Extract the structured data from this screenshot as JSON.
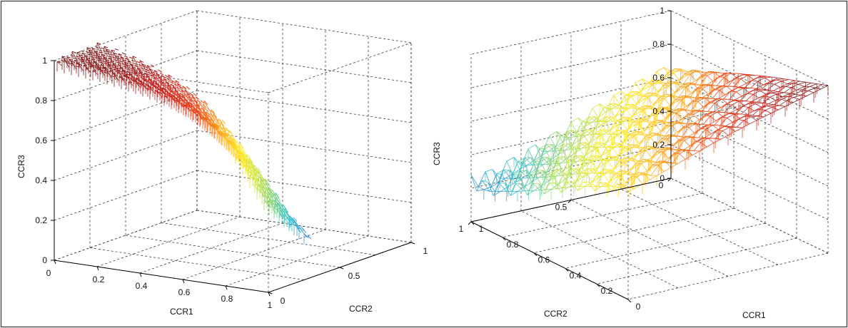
{
  "colors": {
    "background": "#ffffff",
    "frame": "#333333",
    "axes": "#000000",
    "grid": "#222222",
    "colormap": [
      "#1c1c8a",
      "#2b40c8",
      "#2f8fd8",
      "#33c4cc",
      "#8ed67a",
      "#cfe64a",
      "#ffe81e",
      "#ffb020",
      "#f04a18",
      "#c41e1e",
      "#7a1a1a"
    ]
  },
  "chart_data": [
    {
      "type": "surface",
      "panel": "left",
      "xlabel": "CCR1",
      "ylabel": "CCR2",
      "zlabel": "CCR3",
      "xlim": [
        0,
        1
      ],
      "ylim": [
        0,
        1
      ],
      "zlim": [
        0,
        1
      ],
      "xticks": [
        "0",
        "0.2",
        "0.4",
        "0.6",
        "0.8",
        "1"
      ],
      "yticks": [
        "0",
        "0.5",
        "1"
      ],
      "zticks": [
        "0",
        "0.2",
        "0.4",
        "0.6",
        "0.8",
        "1"
      ],
      "grid": true,
      "colormap": "jet",
      "surface_profile": {
        "x": [
          0.0,
          0.1,
          0.2,
          0.3,
          0.4,
          0.5,
          0.6,
          0.7,
          0.8,
          0.9,
          1.0
        ],
        "z_max": [
          0.99,
          0.98,
          0.97,
          0.95,
          0.93,
          0.9,
          0.86,
          0.8,
          0.72,
          0.55,
          0.4
        ],
        "z_min": [
          0.99,
          0.97,
          0.94,
          0.9,
          0.85,
          0.78,
          0.68,
          0.55,
          0.42,
          0.28,
          0.18
        ]
      }
    },
    {
      "type": "surface",
      "panel": "right",
      "xlabel": "CCR1",
      "ylabel": "CCR2",
      "zlabel": "CCR3",
      "xlim": [
        0,
        1
      ],
      "ylim": [
        0,
        1
      ],
      "zlim": [
        0,
        1
      ],
      "xticks": [
        "0",
        "0.2",
        "0.4",
        "0.6",
        "0.8",
        "1"
      ],
      "yticks": [
        "0",
        "0.5",
        "1"
      ],
      "zticks": [
        "0",
        "0.2",
        "0.4",
        "0.6",
        "0.8",
        "1"
      ],
      "grid": true,
      "colormap": "jet",
      "surface_profile": {
        "level": [
          0.0,
          0.1,
          0.2,
          0.3,
          0.4,
          0.5,
          0.6,
          0.7,
          0.8,
          0.9,
          1.0
        ],
        "z": [
          0.28,
          0.36,
          0.45,
          0.55,
          0.63,
          0.7,
          0.77,
          0.84,
          0.9,
          0.95,
          1.0
        ]
      }
    }
  ]
}
